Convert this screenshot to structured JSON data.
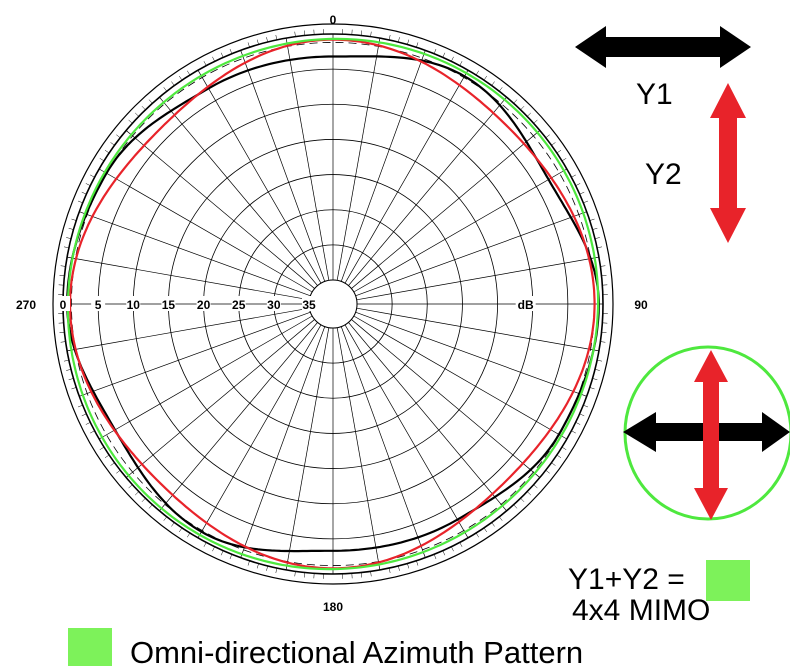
{
  "chart_data": {
    "type": "polar",
    "angle_labels": {
      "top": "0",
      "right": "90",
      "bottom": "180",
      "left": "270"
    },
    "radial_tick_labels": [
      "0",
      "5",
      "10",
      "15",
      "20",
      "25",
      "30",
      "35"
    ],
    "radial_unit": "dB",
    "radial_range_db": [
      -35,
      0
    ],
    "angular_ticks_deg": 10,
    "grid": true,
    "series": [
      {
        "name": "Y1",
        "color": "#000000",
        "description_of_shape": "four-lobed wavy pattern",
        "angles_deg": [
          0,
          30,
          60,
          90,
          120,
          150,
          180,
          210,
          240,
          270,
          300,
          330
        ],
        "db": [
          -3.2,
          -1.0,
          -3.0,
          -0.6,
          -1.3,
          -3.0,
          -3.3,
          -1.0,
          -2.6,
          -0.6,
          -1.2,
          -3.0
        ]
      },
      {
        "name": "Y2",
        "color": "#e8232a",
        "description_of_shape": "four-lobed wavy pattern rotated 45 degrees",
        "angles_deg": [
          0,
          45,
          90,
          135,
          180,
          225,
          270,
          315
        ],
        "db": [
          -0.8,
          -3.0,
          -1.2,
          -3.2,
          -0.8,
          -3.0,
          -1.0,
          -3.4
        ]
      },
      {
        "name": "Y1+Y2",
        "color": "#4ee83e",
        "description_of_shape": "near-circular omni-directional pattern",
        "db_approx": -0.7
      }
    ],
    "reference_circle": {
      "style": "dashed",
      "db": -1.2
    }
  },
  "labels": {
    "y1": "Y1",
    "y2": "Y2",
    "sum_label": "Y1+Y2 =",
    "mimo": "4x4 MIMO",
    "legend": "Omni-directional Azimuth Pattern"
  },
  "colors": {
    "black_arrow": "#000000",
    "red_arrow": "#e8232a",
    "green": "#4ee83e",
    "grid": "#000000"
  },
  "icons": [
    "double-arrow-horizontal-icon",
    "double-arrow-vertical-icon",
    "cross-arrows-icon"
  ]
}
